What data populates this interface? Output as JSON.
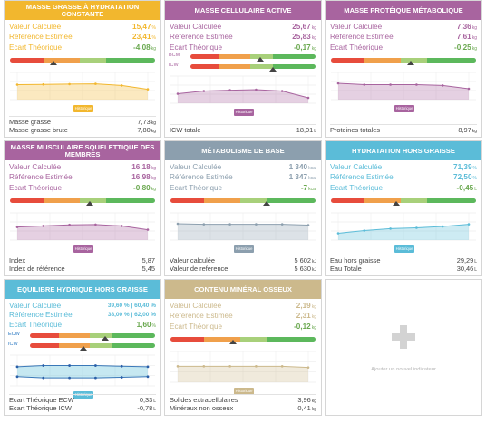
{
  "colors": {
    "yellow": "#f2b72e",
    "purple": "#a8649f",
    "grey_blue": "#8c9fae",
    "light_blue": "#5bbcd8",
    "tan": "#ccb98c",
    "gauge_red": "#e74c3c",
    "gauge_orange": "#f0a04b",
    "gauge_lightgreen": "#a8d07a",
    "gauge_green": "#5cb85c"
  },
  "common": {
    "historique_label": "Historique"
  },
  "cards": [
    {
      "title": "MASSE GRASSE À HYDRATATION CONSTANTE",
      "accent": "yellow",
      "rows": [
        {
          "label": "Valeur Calculée",
          "value": "15,47",
          "unit": "%"
        },
        {
          "label": "Référence Estimée",
          "value": "23,41",
          "unit": "%"
        },
        {
          "label": "Ecart Théorique",
          "value": "-4,08",
          "unit": "kg"
        }
      ],
      "gauge_level": 0.3,
      "series": [
        0.55,
        0.56,
        0.57,
        0.58,
        0.52,
        0.38
      ],
      "footer": [
        {
          "label": "Masse grasse",
          "value": "7,73",
          "unit": "kg"
        },
        {
          "label": "Masse grasse brute",
          "value": "7,80",
          "unit": "kg"
        }
      ]
    },
    {
      "title": "MASSE CELLULAIRE ACTIVE",
      "accent": "purple",
      "rows": [
        {
          "label": "Valeur Calculée",
          "value": "25,67",
          "unit": "kg"
        },
        {
          "label": "Référence Estimée",
          "value": "25,83",
          "unit": "kg"
        },
        {
          "label": "Ecart Théorique",
          "value": "-0,17",
          "unit": "kg"
        }
      ],
      "dual_gauge": [
        {
          "label": "BCM",
          "level": 0.56
        },
        {
          "label": "ICW",
          "level": 0.66
        }
      ],
      "series": [
        0.35,
        0.45,
        0.48,
        0.5,
        0.45,
        0.2
      ],
      "footer": [
        {
          "label": "ICW totale",
          "value": "18,01",
          "unit": "L"
        }
      ]
    },
    {
      "title": "MASSE PROTÉIQUE MÉTABOLIQUE",
      "accent": "purple",
      "rows": [
        {
          "label": "Valeur Calculée",
          "value": "7,36",
          "unit": "kg"
        },
        {
          "label": "Référence Estimée",
          "value": "7,61",
          "unit": "kg"
        },
        {
          "label": "Ecart Théorique",
          "value": "-0,25",
          "unit": "kg"
        }
      ],
      "gauge_level": 0.55,
      "series": [
        0.6,
        0.55,
        0.55,
        0.55,
        0.52,
        0.4
      ],
      "footer": [
        {
          "label": "Proteines totales",
          "value": "8,97",
          "unit": "kg"
        }
      ]
    },
    {
      "title": "MASSE MUSCULAIRE SQUELETTIQUE DES MEMBRES",
      "accent": "purple",
      "rows": [
        {
          "label": "Valeur Calculée",
          "value": "16,18",
          "unit": "kg"
        },
        {
          "label": "Référence Estimée",
          "value": "16,98",
          "unit": "kg"
        },
        {
          "label": "Ecart Théorique",
          "value": "-0,80",
          "unit": "kg"
        }
      ],
      "gauge_level": 0.55,
      "series": [
        0.48,
        0.52,
        0.56,
        0.57,
        0.52,
        0.38
      ],
      "footer": [
        {
          "label": "Index",
          "value": "5,87",
          "unit": ""
        },
        {
          "label": "Index de référence",
          "value": "5,45",
          "unit": ""
        }
      ]
    },
    {
      "title": "MÉTABOLISME DE BASE",
      "accent": "grey_blue",
      "rows": [
        {
          "label": "Valeur Calculée",
          "value": "1 340",
          "unit": "kcal"
        },
        {
          "label": "Référence Estimée",
          "value": "1 347",
          "unit": "kcal"
        },
        {
          "label": "Ecart Théorique",
          "value": "-7",
          "unit": "kcal"
        }
      ],
      "gauge_level": 0.66,
      "series": [
        0.6,
        0.58,
        0.58,
        0.58,
        0.58,
        0.55
      ],
      "footer": [
        {
          "label": "Valeur calculée",
          "value": "5 602",
          "unit": "kJ"
        },
        {
          "label": "Valeur de reference",
          "value": "5 630",
          "unit": "kJ"
        }
      ]
    },
    {
      "title": "HYDRATATION HORS GRAISSE",
      "accent": "light_blue",
      "rows": [
        {
          "label": "Valeur Calculée",
          "value": "71,39",
          "unit": "%"
        },
        {
          "label": "Référence Estimée",
          "value": "72,50",
          "unit": "%"
        },
        {
          "label": "Ecart Théorique",
          "value": "-0,45",
          "unit": "L"
        }
      ],
      "gauge_level": 0.45,
      "series": [
        0.25,
        0.35,
        0.42,
        0.45,
        0.5,
        0.58
      ],
      "footer": [
        {
          "label": "Eau hors graisse",
          "value": "29,29",
          "unit": "L"
        },
        {
          "label": "Eau Totale",
          "value": "30,46",
          "unit": "L"
        }
      ]
    },
    {
      "title": "EQUILIBRE HYDRIQUE HORS GRAISSE",
      "accent": "light_blue",
      "rows": [
        {
          "label": "Valeur Calculée",
          "value_a": "39,60 %",
          "value_b": "60,40 %"
        },
        {
          "label": "Référence Estimée",
          "value_a": "38,00 %",
          "value_b": "62,00 %"
        },
        {
          "label": "Ecart Théorique",
          "value": "1,60",
          "unit": "%"
        }
      ],
      "dual_gauge": [
        {
          "label": "ECW",
          "level": 0.6
        },
        {
          "label": "ICW",
          "level": 0.43
        }
      ],
      "series": [
        0.62,
        0.66,
        0.66,
        0.66,
        0.64,
        0.62
      ],
      "series_b": [
        0.3,
        0.26,
        0.26,
        0.26,
        0.28,
        0.3
      ],
      "footer": [
        {
          "label": "Ecart Théorique ECW",
          "value": "0,33",
          "unit": "L"
        },
        {
          "label": "Ecart Théorique ICW",
          "value": "-0,78",
          "unit": "L"
        }
      ]
    },
    {
      "title": "CONTENU MINÉRAL OSSEUX",
      "accent": "tan",
      "rows": [
        {
          "label": "Valeur Calculée",
          "value": "2,19",
          "unit": "kg"
        },
        {
          "label": "Référence Estimée",
          "value": "2,31",
          "unit": "kg"
        },
        {
          "label": "Ecart Théorique",
          "value": "-0,12",
          "unit": "kg"
        }
      ],
      "gauge_level": 0.43,
      "series": [
        0.52,
        0.52,
        0.52,
        0.52,
        0.52,
        0.48
      ],
      "footer": [
        {
          "label": "Solides extracellulaires",
          "value": "3,96",
          "unit": "kg"
        },
        {
          "label": "Minéraux non osseux",
          "value": "0,41",
          "unit": "kg"
        }
      ]
    }
  ],
  "add_card": {
    "label": "Ajouter un nouvel indicateur"
  }
}
